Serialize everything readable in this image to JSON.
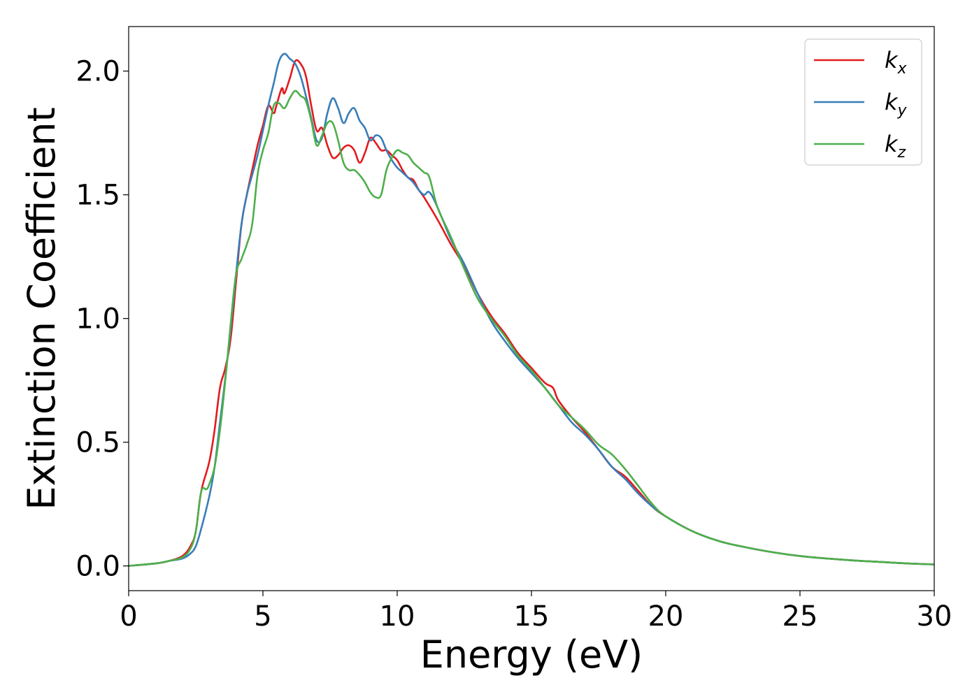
{
  "chart_data": {
    "type": "line",
    "title": "",
    "xlabel": "Energy (eV)",
    "ylabel": "Extinction Coefficient",
    "xlim": [
      0,
      30
    ],
    "ylim": [
      -0.1,
      2.18
    ],
    "xticks": [
      0,
      5,
      10,
      15,
      20,
      25,
      30
    ],
    "xtick_labels": [
      "0",
      "5",
      "10",
      "15",
      "20",
      "25",
      "30"
    ],
    "yticks": [
      0.0,
      0.5,
      1.0,
      1.5,
      2.0
    ],
    "ytick_labels": [
      "0.0",
      "0.5",
      "1.0",
      "1.5",
      "2.0"
    ],
    "grid": false,
    "legend_position": "top-right",
    "series": [
      {
        "name": "k_x",
        "label_main": "k",
        "label_sub": "x",
        "color": "#e41a1c",
        "x": [
          0,
          1,
          1.5,
          2,
          2.3,
          2.5,
          2.7,
          3.0,
          3.2,
          3.4,
          3.6,
          3.8,
          4.0,
          4.2,
          4.4,
          4.6,
          4.8,
          5.0,
          5.2,
          5.4,
          5.5,
          5.7,
          5.8,
          6.0,
          6.2,
          6.4,
          6.6,
          6.8,
          7.0,
          7.2,
          7.4,
          7.6,
          7.8,
          8.0,
          8.2,
          8.4,
          8.6,
          8.8,
          9.0,
          9.2,
          9.4,
          9.6,
          9.8,
          10.0,
          10.2,
          10.4,
          10.6,
          10.8,
          11.0,
          11.5,
          12.0,
          12.5,
          13.0,
          13.5,
          14.0,
          14.5,
          15.0,
          15.5,
          15.8,
          16.0,
          16.5,
          17.0,
          17.5,
          18.0,
          18.5,
          19.0,
          19.5,
          20.0,
          21.0,
          22.0,
          23.0,
          24.0,
          25.0,
          26.0,
          27.0,
          28.0,
          29.0,
          30.0
        ],
        "y": [
          0.0,
          0.01,
          0.02,
          0.04,
          0.08,
          0.14,
          0.3,
          0.42,
          0.55,
          0.72,
          0.8,
          0.92,
          1.15,
          1.38,
          1.5,
          1.6,
          1.7,
          1.78,
          1.86,
          1.83,
          1.86,
          1.93,
          1.91,
          1.97,
          2.04,
          2.03,
          1.98,
          1.86,
          1.76,
          1.77,
          1.7,
          1.65,
          1.66,
          1.69,
          1.7,
          1.68,
          1.63,
          1.67,
          1.73,
          1.71,
          1.68,
          1.68,
          1.66,
          1.64,
          1.6,
          1.57,
          1.56,
          1.52,
          1.49,
          1.4,
          1.3,
          1.21,
          1.1,
          1.01,
          0.94,
          0.86,
          0.8,
          0.74,
          0.72,
          0.67,
          0.6,
          0.54,
          0.47,
          0.4,
          0.36,
          0.3,
          0.24,
          0.2,
          0.14,
          0.1,
          0.075,
          0.055,
          0.04,
          0.03,
          0.022,
          0.016,
          0.01,
          0.006
        ]
      },
      {
        "name": "k_y",
        "label_main": "k",
        "label_sub": "y",
        "color": "#377eb8",
        "x": [
          0,
          1,
          1.5,
          2,
          2.3,
          2.5,
          2.7,
          3.0,
          3.2,
          3.4,
          3.6,
          3.8,
          4.0,
          4.2,
          4.4,
          4.6,
          4.8,
          5.0,
          5.2,
          5.4,
          5.6,
          5.8,
          6.0,
          6.2,
          6.4,
          6.6,
          6.8,
          7.0,
          7.2,
          7.4,
          7.6,
          7.8,
          8.0,
          8.2,
          8.4,
          8.6,
          8.8,
          9.0,
          9.2,
          9.4,
          9.6,
          9.8,
          10.0,
          10.2,
          10.4,
          10.6,
          10.8,
          11.0,
          11.2,
          11.5,
          12.0,
          12.5,
          13.0,
          13.5,
          14.0,
          14.5,
          15.0,
          15.5,
          16.0,
          16.5,
          17.0,
          17.5,
          18.0,
          18.5,
          19.0,
          19.5,
          20.0,
          21.0,
          22.0,
          23.0,
          24.0,
          25.0,
          26.0,
          27.0,
          28.0,
          29.0,
          30.0
        ],
        "y": [
          0.0,
          0.01,
          0.02,
          0.03,
          0.05,
          0.08,
          0.15,
          0.28,
          0.4,
          0.58,
          0.76,
          0.96,
          1.18,
          1.38,
          1.5,
          1.58,
          1.66,
          1.76,
          1.86,
          1.95,
          2.04,
          2.07,
          2.05,
          2.03,
          1.98,
          1.9,
          1.81,
          1.72,
          1.73,
          1.83,
          1.89,
          1.85,
          1.79,
          1.83,
          1.85,
          1.8,
          1.77,
          1.72,
          1.74,
          1.73,
          1.68,
          1.64,
          1.61,
          1.59,
          1.57,
          1.55,
          1.52,
          1.5,
          1.51,
          1.45,
          1.32,
          1.22,
          1.1,
          0.99,
          0.91,
          0.84,
          0.78,
          0.72,
          0.65,
          0.58,
          0.53,
          0.47,
          0.4,
          0.35,
          0.29,
          0.24,
          0.2,
          0.14,
          0.1,
          0.075,
          0.055,
          0.04,
          0.03,
          0.022,
          0.016,
          0.01,
          0.006
        ]
      },
      {
        "name": "k_z",
        "label_main": "k",
        "label_sub": "z",
        "color": "#4daf4a",
        "x": [
          0,
          1,
          1.5,
          2,
          2.3,
          2.5,
          2.7,
          2.9,
          3.0,
          3.2,
          3.4,
          3.6,
          3.8,
          4.0,
          4.2,
          4.4,
          4.6,
          4.8,
          5.0,
          5.2,
          5.4,
          5.6,
          5.8,
          6.0,
          6.2,
          6.4,
          6.6,
          6.8,
          7.0,
          7.2,
          7.4,
          7.6,
          7.8,
          8.0,
          8.2,
          8.4,
          8.6,
          8.8,
          9.0,
          9.2,
          9.4,
          9.6,
          9.8,
          10.0,
          10.2,
          10.4,
          10.6,
          10.8,
          11.0,
          11.2,
          11.5,
          12.0,
          12.5,
          13.0,
          13.5,
          14.0,
          14.5,
          15.0,
          15.5,
          16.0,
          16.5,
          17.0,
          17.5,
          18.0,
          18.5,
          19.0,
          19.5,
          20.0,
          21.0,
          22.0,
          23.0,
          24.0,
          25.0,
          26.0,
          27.0,
          28.0,
          29.0,
          30.0
        ],
        "y": [
          0.0,
          0.01,
          0.02,
          0.035,
          0.07,
          0.14,
          0.3,
          0.31,
          0.33,
          0.4,
          0.55,
          0.75,
          0.98,
          1.18,
          1.24,
          1.3,
          1.38,
          1.58,
          1.68,
          1.75,
          1.86,
          1.87,
          1.85,
          1.89,
          1.92,
          1.9,
          1.88,
          1.8,
          1.7,
          1.74,
          1.79,
          1.79,
          1.72,
          1.63,
          1.6,
          1.6,
          1.58,
          1.55,
          1.51,
          1.49,
          1.5,
          1.6,
          1.65,
          1.68,
          1.67,
          1.66,
          1.63,
          1.61,
          1.59,
          1.57,
          1.45,
          1.33,
          1.2,
          1.08,
          1.0,
          0.93,
          0.85,
          0.79,
          0.72,
          0.65,
          0.6,
          0.55,
          0.49,
          0.45,
          0.39,
          0.32,
          0.25,
          0.2,
          0.14,
          0.1,
          0.075,
          0.055,
          0.04,
          0.03,
          0.022,
          0.016,
          0.01,
          0.006
        ]
      }
    ]
  }
}
